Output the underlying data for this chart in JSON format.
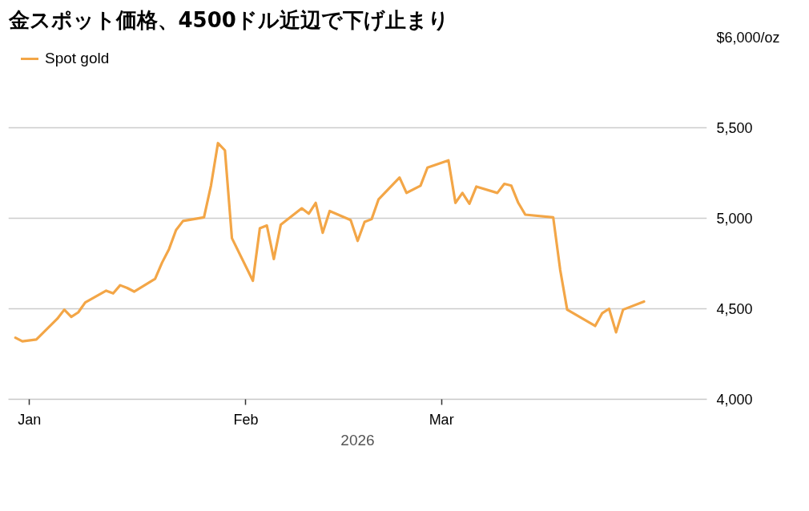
{
  "chart_data": {
    "type": "line",
    "title": "金スポット価格、4500ドル近辺で下げ止まり",
    "xlabel": "2026",
    "x": [
      "2025-12-30",
      "2025-12-31",
      "2026-01-02",
      "2026-01-05",
      "2026-01-06",
      "2026-01-07",
      "2026-01-08",
      "2026-01-09",
      "2026-01-12",
      "2026-01-13",
      "2026-01-14",
      "2026-01-15",
      "2026-01-16",
      "2026-01-19",
      "2026-01-20",
      "2026-01-21",
      "2026-01-22",
      "2026-01-23",
      "2026-01-26",
      "2026-01-27",
      "2026-01-28",
      "2026-01-29",
      "2026-01-30",
      "2026-02-02",
      "2026-02-03",
      "2026-02-04",
      "2026-02-05",
      "2026-02-06",
      "2026-02-09",
      "2026-02-10",
      "2026-02-11",
      "2026-02-12",
      "2026-02-13",
      "2026-02-16",
      "2026-02-17",
      "2026-02-18",
      "2026-02-19",
      "2026-02-20",
      "2026-02-23",
      "2026-02-24",
      "2026-02-26",
      "2026-02-27",
      "2026-03-02",
      "2026-03-03",
      "2026-03-04",
      "2026-03-05",
      "2026-03-06",
      "2026-03-09",
      "2026-03-10",
      "2026-03-11",
      "2026-03-12",
      "2026-03-13",
      "2026-03-17",
      "2026-03-18",
      "2026-03-19",
      "2026-03-23",
      "2026-03-24",
      "2026-03-25",
      "2026-03-26",
      "2026-03-27",
      "2026-03-30"
    ],
    "series": [
      {
        "name": "Spot gold",
        "color": "#f3a647",
        "values": [
          4340,
          4320,
          4330,
          4445,
          4495,
          4455,
          4480,
          4535,
          4600,
          4585,
          4630,
          4615,
          4595,
          4665,
          4755,
          4830,
          4935,
          4985,
          5005,
          5180,
          5415,
          5375,
          4890,
          4655,
          4945,
          4960,
          4775,
          4965,
          5055,
          5025,
          5085,
          4920,
          5040,
          4990,
          4875,
          4980,
          4995,
          5105,
          5225,
          5140,
          5180,
          5280,
          5320,
          5085,
          5140,
          5080,
          5175,
          5140,
          5190,
          5180,
          5085,
          5020,
          5005,
          4715,
          4495,
          4405,
          4475,
          4500,
          4370,
          4495,
          4540
        ]
      }
    ],
    "xlim": [
      "2025-12-29",
      "2026-04-08"
    ],
    "xticks": [
      {
        "value": "2026-01-01",
        "label": "Jan"
      },
      {
        "value": "2026-02-01",
        "label": "Feb"
      },
      {
        "value": "2026-03-01",
        "label": "Mar"
      }
    ],
    "ylim": [
      4000,
      6000
    ],
    "yticks": [
      {
        "value": 4000,
        "label": "4,000"
      },
      {
        "value": 4500,
        "label": "4,500"
      },
      {
        "value": 5000,
        "label": "5,000"
      },
      {
        "value": 5500,
        "label": "5,500"
      },
      {
        "value": 6000,
        "label": "$6,000/oz"
      }
    ],
    "grid": "y",
    "legend": "top left",
    "line_style": "solid"
  }
}
